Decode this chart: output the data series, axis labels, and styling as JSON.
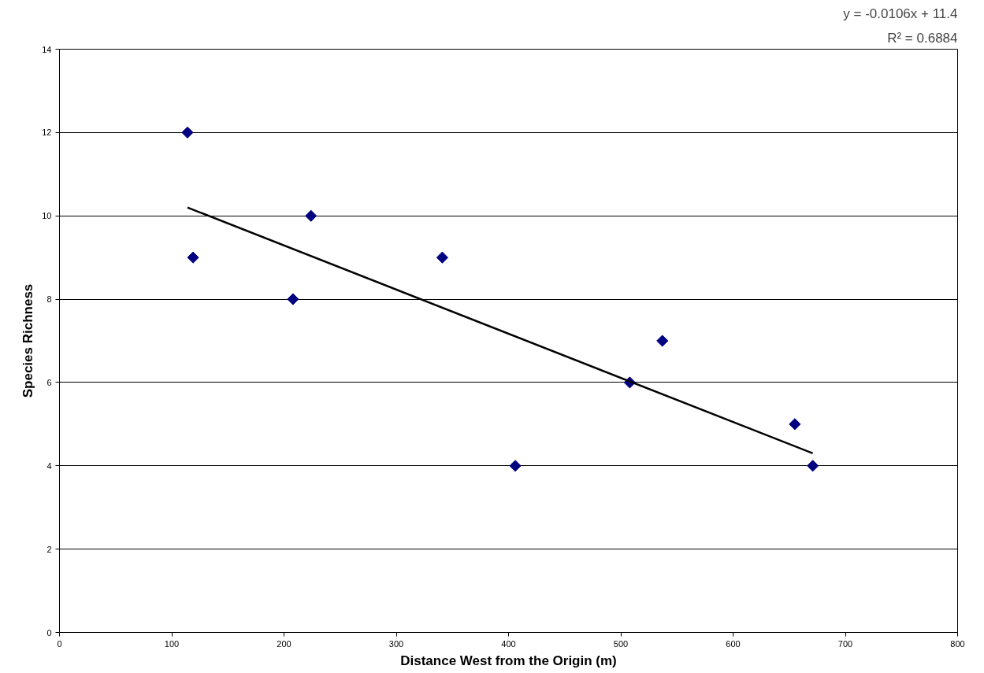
{
  "chart_data": {
    "type": "scatter",
    "xlabel": "Distance West from the Origin (m)",
    "ylabel": "Species Richness",
    "annotations": [
      "y = -0.0106x + 11.4",
      "R² = 0.6884"
    ],
    "series": [
      {
        "color": "#000080",
        "marker": "diamond",
        "x": [
          114,
          119,
          208,
          224,
          341,
          406,
          508,
          537,
          655,
          671
        ],
        "values": [
          12,
          9,
          8,
          10,
          9,
          4,
          6,
          7,
          5,
          4
        ]
      },
      {
        "type": "line",
        "marker": "none",
        "color": "#000000",
        "x": [
          114,
          671
        ],
        "values": [
          10.2,
          4.3
        ]
      }
    ],
    "xlim": [
      0,
      800
    ],
    "ylim": [
      0,
      14
    ],
    "xticks": [
      0,
      100,
      200,
      300,
      400,
      500,
      600,
      700,
      800
    ],
    "yticks": [
      0,
      2,
      4,
      6,
      8,
      10,
      12,
      14
    ],
    "grid": "y",
    "line_style": "solid"
  }
}
